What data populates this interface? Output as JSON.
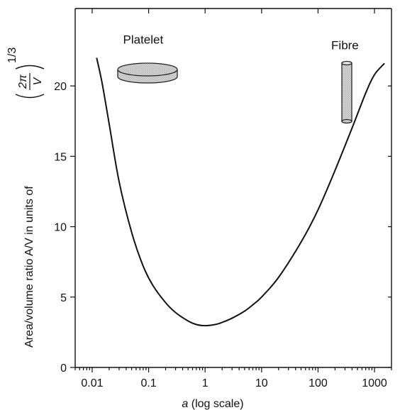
{
  "chart_data": {
    "type": "line",
    "title": "",
    "xlabel_prefix": "a",
    "xlabel_rest": " (log scale)",
    "ylabel_text": "Area/volume ratio A/V in units of",
    "ylabel_frac_num": "2π",
    "ylabel_frac_den": "V",
    "ylabel_exponent": "1/3",
    "xscale": "log",
    "xlim": [
      0.005,
      2000
    ],
    "ylim": [
      0,
      25.5
    ],
    "x_ticks": [
      0.01,
      0.1,
      1,
      10,
      100,
      1000
    ],
    "x_tick_labels": [
      "0.01",
      "0.1",
      "1",
      "10",
      "100",
      "1000"
    ],
    "y_ticks": [
      0,
      5,
      10,
      15,
      20
    ],
    "y_tick_labels": [
      "0",
      "5",
      "10",
      "15",
      "20"
    ],
    "grid": false,
    "series": [
      {
        "x": [
          0.012,
          0.015,
          0.02,
          0.03,
          0.05,
          0.08,
          0.12,
          0.2,
          0.3,
          0.5,
          0.7,
          1,
          1.5,
          2,
          3,
          5,
          7,
          10,
          20,
          50,
          100,
          200,
          400,
          700,
          1000,
          1500
        ],
        "y": [
          22.0,
          20.2,
          17.3,
          13.2,
          9.6,
          7.2,
          5.8,
          4.6,
          3.9,
          3.3,
          3.05,
          2.97,
          3.05,
          3.2,
          3.5,
          4.0,
          4.45,
          5.0,
          6.4,
          8.9,
          11.2,
          14.0,
          17.0,
          19.5,
          20.8,
          21.6
        ]
      }
    ],
    "annotations": [
      {
        "text": "Platelet",
        "x": 0.08,
        "y": 23.0
      },
      {
        "text": "Fibre",
        "x": 300,
        "y": 22.6
      }
    ]
  }
}
